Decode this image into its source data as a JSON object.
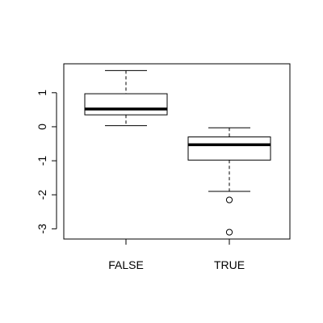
{
  "chart_data": {
    "type": "boxplot",
    "title": "",
    "xlabel": "",
    "ylabel": "",
    "ylim": [
      -3.3,
      1.85
    ],
    "y_ticks": [
      -3,
      -2,
      -1,
      0,
      1
    ],
    "y_tick_labels": [
      "-3",
      "-2",
      "-1",
      "0",
      "1"
    ],
    "categories": [
      "FALSE",
      "TRUE"
    ],
    "boxes": [
      {
        "category": "FALSE",
        "whisker_low": 0.03,
        "q1": 0.35,
        "median": 0.52,
        "q3": 0.97,
        "whisker_high": 1.65,
        "outliers": []
      },
      {
        "category": "TRUE",
        "whisker_low": -1.9,
        "q1": -0.98,
        "median": -0.53,
        "q3": -0.3,
        "whisker_high": -0.03,
        "outliers": [
          -2.15,
          -3.1
        ]
      }
    ],
    "grid": false,
    "legend": "none",
    "colors": {
      "box_fill": "#ffffff",
      "stroke": "#000000"
    }
  }
}
